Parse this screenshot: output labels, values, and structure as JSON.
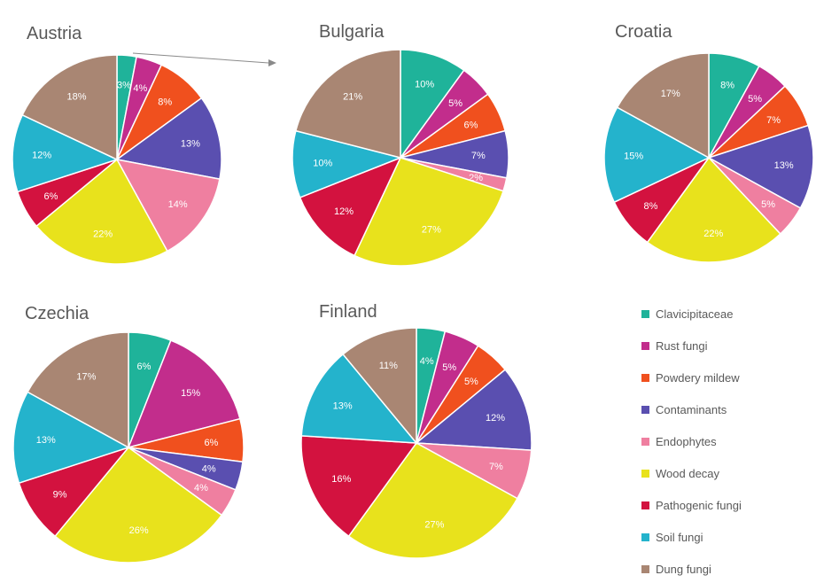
{
  "chart_data": {
    "type": "pie",
    "categories": [
      "Clavicipitaceae",
      "Rust fungi",
      "Powdery mildew",
      "Contaminants",
      "Endophytes",
      "Wood decay",
      "Pathogenic fungi",
      "Soil fungi",
      "Dung fungi"
    ],
    "colors": [
      "#1fb39a",
      "#c22d8c",
      "#f0501e",
      "#5a4fb0",
      "#ef7fa0",
      "#e8e21c",
      "#d3123f",
      "#24b3cc",
      "#a98673"
    ],
    "charts": [
      {
        "title": "Austria",
        "values": [
          3,
          4,
          8,
          13,
          14,
          22,
          6,
          12,
          18
        ],
        "labels": [
          "3%",
          "4%",
          "8%",
          "13%",
          "14%",
          "22%",
          "6%",
          "12%",
          "18%"
        ]
      },
      {
        "title": "Bulgaria",
        "values": [
          10,
          5,
          6,
          7,
          2,
          27,
          12,
          10,
          21
        ],
        "labels": [
          "10%",
          "5%",
          "6%",
          "7%",
          "2%",
          "27%",
          "12%",
          "10%",
          "21%"
        ]
      },
      {
        "title": "Croatia",
        "values": [
          8,
          5,
          7,
          13,
          5,
          22,
          8,
          15,
          17
        ],
        "labels": [
          "8%",
          "5%",
          "7%",
          "13%",
          "5%",
          "22%",
          "8%",
          "15%",
          "17%"
        ]
      },
      {
        "title": "Czechia",
        "values": [
          6,
          15,
          6,
          4,
          4,
          26,
          9,
          13,
          17
        ],
        "labels": [
          "6%",
          "15%",
          "6%",
          "4%",
          "4%",
          "26%",
          "9%",
          "13%",
          "17%"
        ]
      },
      {
        "title": "Finland",
        "values": [
          4,
          5,
          5,
          12,
          7,
          27,
          16,
          13,
          11
        ],
        "labels": [
          "4%",
          "5%",
          "5%",
          "12%",
          "7%",
          "27%",
          "16%",
          "13%",
          "11%"
        ]
      }
    ],
    "legend_position": "bottom-right"
  }
}
